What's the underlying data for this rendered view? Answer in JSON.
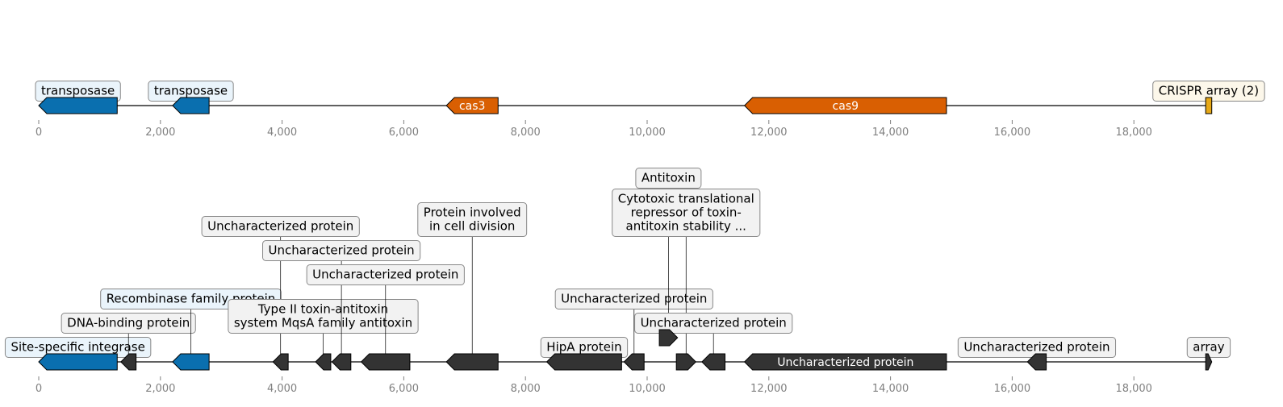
{
  "colors": {
    "transposase": "#0a6faf",
    "cas": "#d95f02",
    "crispr": "#e6a817",
    "other": "#333333",
    "box_blue": "#eaf4fb",
    "box_cream": "#fcf7ea",
    "box_gray": "#f2f2f2",
    "box_border": "#888888",
    "axis_text": "#808080"
  },
  "axis": {
    "min": 0,
    "max": 19300,
    "ticks": [
      {
        "value": 0,
        "label": "0"
      },
      {
        "value": 2000,
        "label": "2,000"
      },
      {
        "value": 4000,
        "label": "4,000"
      },
      {
        "value": 6000,
        "label": "6,000"
      },
      {
        "value": 8000,
        "label": "8,000"
      },
      {
        "value": 10000,
        "label": "10,000"
      },
      {
        "value": 12000,
        "label": "12,000"
      },
      {
        "value": 14000,
        "label": "14,000"
      },
      {
        "value": 16000,
        "label": "16,000"
      },
      {
        "value": 18000,
        "label": "18,000"
      }
    ]
  },
  "tracks": [
    {
      "name": "top-track",
      "features": [
        {
          "start": 0,
          "end": 1290,
          "strand": -1,
          "color": "transposase",
          "label": "transposase",
          "box": "blue",
          "label_level": 1
        },
        {
          "start": 2200,
          "end": 2800,
          "strand": -1,
          "color": "transposase",
          "label": "transposase",
          "box": "blue",
          "label_level": 1
        },
        {
          "start": 6700,
          "end": 7550,
          "strand": -1,
          "color": "cas",
          "inline_label": "cas3"
        },
        {
          "start": 11600,
          "end": 14920,
          "strand": -1,
          "color": "cas",
          "inline_label": "cas9"
        },
        {
          "start": 19180,
          "end": 19280,
          "strand": 0,
          "color": "crispr",
          "label": "CRISPR array (2)",
          "box": "cream",
          "label_level": 1
        }
      ]
    },
    {
      "name": "bottom-track",
      "features": [
        {
          "start": 0,
          "end": 1290,
          "strand": -1,
          "color": "transposase",
          "label": "Site-specific integrase",
          "box": "blue",
          "label_level": 1
        },
        {
          "start": 1350,
          "end": 1600,
          "strand": -1,
          "color": "other",
          "label": "DNA-binding protein",
          "box": "gray",
          "label_level": 2
        },
        {
          "start": 2200,
          "end": 2800,
          "strand": -1,
          "color": "transposase",
          "label": "Recombinase family protein",
          "box": "blue",
          "label_level": 3
        },
        {
          "start": 3850,
          "end": 4100,
          "strand": -1,
          "color": "other",
          "label": "Uncharacterized protein",
          "box": "gray",
          "label_level": 6
        },
        {
          "start": 4550,
          "end": 4800,
          "strand": -1,
          "color": "other",
          "label": "Type II toxin-antitoxin\nsystem MqsA family antitoxin",
          "box": "gray",
          "label_level": 2
        },
        {
          "start": 4820,
          "end": 5130,
          "strand": -1,
          "color": "other",
          "label": "Uncharacterized protein",
          "box": "gray",
          "label_level": 5
        },
        {
          "start": 5300,
          "end": 6100,
          "strand": -1,
          "color": "other",
          "label": "Uncharacterized protein",
          "box": "gray",
          "label_level": 4
        },
        {
          "start": 6700,
          "end": 7550,
          "strand": -1,
          "color": "other",
          "label": "Protein involved\nin cell division",
          "box": "gray",
          "label_level": 6
        },
        {
          "start": 8350,
          "end": 9580,
          "strand": -1,
          "color": "other",
          "label": "HipA protein",
          "box": "gray",
          "label_level": 1
        },
        {
          "start": 9620,
          "end": 9950,
          "strand": -1,
          "color": "other",
          "label": "Uncharacterized protein",
          "box": "gray",
          "label_level": 3
        },
        {
          "start": 10200,
          "end": 10500,
          "strand": 1,
          "color": "other",
          "row": 1,
          "label": "Antitoxin",
          "box": "gray",
          "label_level": 8
        },
        {
          "start": 10480,
          "end": 10800,
          "strand": 1,
          "color": "other",
          "label": "Cytotoxic translational\nrepressor of toxin-\nantitoxin stability ...",
          "box": "gray",
          "label_level": 6
        },
        {
          "start": 10900,
          "end": 11280,
          "strand": -1,
          "color": "other",
          "label": "Uncharacterized protein",
          "box": "gray",
          "label_level": 2
        },
        {
          "start": 11600,
          "end": 14920,
          "strand": -1,
          "color": "other",
          "inline_label": "Uncharacterized protein"
        },
        {
          "start": 16250,
          "end": 16560,
          "strand": -1,
          "color": "other",
          "label": "Uncharacterized protein",
          "box": "gray",
          "label_level": 1
        },
        {
          "start": 19180,
          "end": 19280,
          "strand": 1,
          "color": "other",
          "label": "array",
          "box": "gray",
          "label_level": 1
        }
      ]
    }
  ]
}
